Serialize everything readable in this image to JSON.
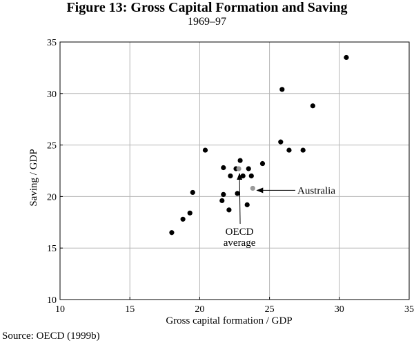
{
  "chart_data": {
    "type": "scatter",
    "title": "Figure 13: Gross Capital Formation and Saving",
    "subtitle": "1969–97",
    "xlabel": "Gross capital formation / GDP",
    "ylabel": "Saving / GDP",
    "xlim": [
      10,
      35
    ],
    "ylim": [
      10,
      35
    ],
    "xticks": [
      10,
      15,
      20,
      25,
      30,
      35
    ],
    "yticks": [
      10,
      15,
      20,
      25,
      30,
      35
    ],
    "grid": true,
    "colors": {
      "country": "#000000",
      "highlight": "#9a9a9a",
      "grid": "#b4b4b4"
    },
    "series": [
      {
        "name": "Countries",
        "points": [
          {
            "x": 18.0,
            "y": 16.5
          },
          {
            "x": 18.8,
            "y": 17.8
          },
          {
            "x": 19.3,
            "y": 18.4
          },
          {
            "x": 19.5,
            "y": 20.4
          },
          {
            "x": 20.4,
            "y": 24.5
          },
          {
            "x": 21.6,
            "y": 19.6
          },
          {
            "x": 21.7,
            "y": 20.2
          },
          {
            "x": 21.7,
            "y": 22.8
          },
          {
            "x": 22.1,
            "y": 18.7
          },
          {
            "x": 22.2,
            "y": 22.0
          },
          {
            "x": 22.6,
            "y": 22.7
          },
          {
            "x": 22.7,
            "y": 20.3
          },
          {
            "x": 22.9,
            "y": 23.5
          },
          {
            "x": 23.1,
            "y": 22.0
          },
          {
            "x": 23.4,
            "y": 19.2
          },
          {
            "x": 23.5,
            "y": 22.7
          },
          {
            "x": 23.7,
            "y": 22.0
          },
          {
            "x": 24.5,
            "y": 23.2
          },
          {
            "x": 25.8,
            "y": 25.3
          },
          {
            "x": 25.9,
            "y": 30.4
          },
          {
            "x": 26.4,
            "y": 24.5
          },
          {
            "x": 27.4,
            "y": 24.5
          },
          {
            "x": 28.1,
            "y": 28.8
          },
          {
            "x": 30.5,
            "y": 33.5
          }
        ]
      },
      {
        "name": "Highlighted",
        "points": [
          {
            "x": 22.8,
            "y": 22.7,
            "label": "OECD average"
          },
          {
            "x": 23.8,
            "y": 20.8,
            "label": "Australia"
          }
        ]
      }
    ],
    "annotations": [
      {
        "text": "Australia",
        "target": "Australia",
        "arrow": "left"
      },
      {
        "lines": [
          "OECD",
          "average"
        ],
        "target": "OECD average",
        "arrow": "up"
      }
    ],
    "source": "Source: OECD (1999b)"
  }
}
